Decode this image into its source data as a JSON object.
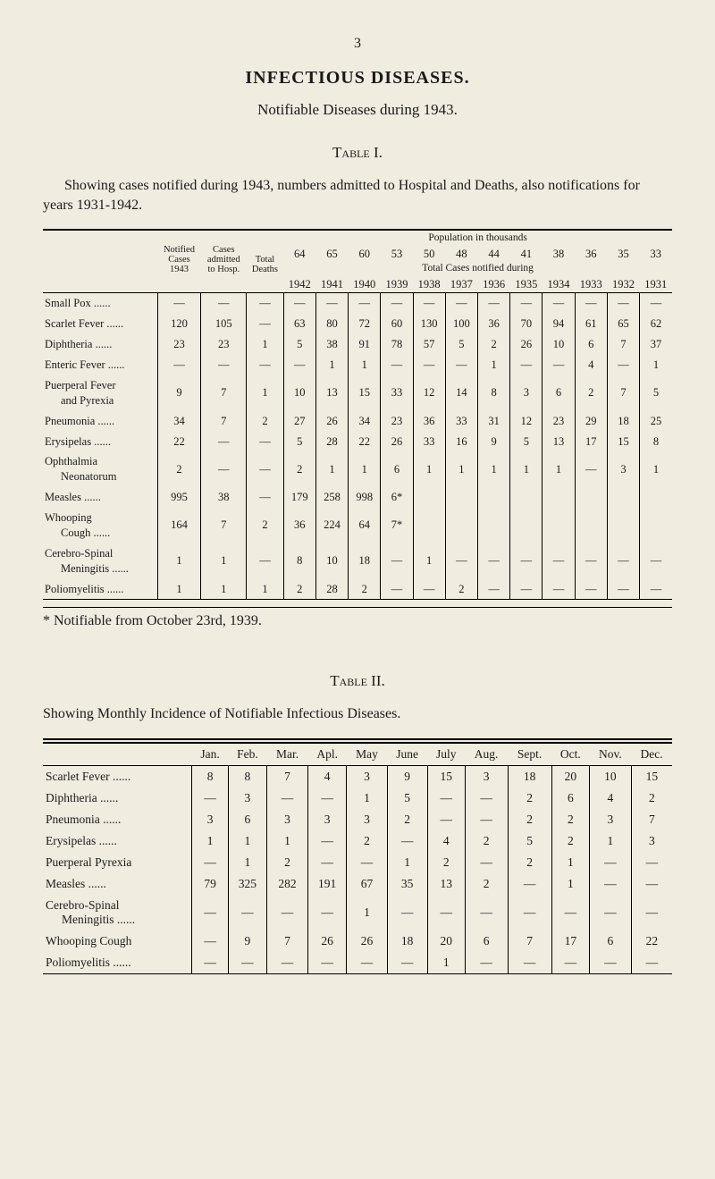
{
  "colors": {
    "background": "#f0ece0",
    "text": "#1a1a1a",
    "rule": "#000000"
  },
  "pageNumber": "3",
  "heading": "INFECTIOUS DISEASES.",
  "subtitle": "Notifiable Diseases during 1943.",
  "tableI": {
    "caption": "Table I.",
    "description": "Showing cases notified during 1943, numbers admitted to Hospital and Deaths, also notifications for years 1931-1942.",
    "header": {
      "col1_line1": "Notified",
      "col1_line2": "Cases",
      "col1_line3": "1943",
      "col2_line1": "Cases",
      "col2_line2": "admitted",
      "col2_line3": "to Hosp.",
      "col3_line1": "Total",
      "col3_line2": "Deaths",
      "pop_label": "Population in thousands",
      "pop_nums": [
        "64",
        "65",
        "60",
        "53",
        "50",
        "48",
        "44",
        "41",
        "38",
        "36",
        "35",
        "33"
      ],
      "tot_label": "Total Cases notified during",
      "years": [
        "1942",
        "1941",
        "1940",
        "1939",
        "1938",
        "1937",
        "1936",
        "1935",
        "1934",
        "1933",
        "1932",
        "1931"
      ]
    },
    "rows": [
      {
        "label": "Small Pox",
        "dots": true,
        "cells": [
          "—",
          "—",
          "—",
          "—",
          "—",
          "—",
          "—",
          "—",
          "—",
          "—",
          "—",
          "—",
          "—",
          "—",
          "—"
        ]
      },
      {
        "label": "Scarlet Fever",
        "dots": true,
        "cells": [
          "120",
          "105",
          "—",
          "63",
          "80",
          "72",
          "60",
          "130",
          "100",
          "36",
          "70",
          "94",
          "61",
          "65",
          "62"
        ]
      },
      {
        "label": "Diphtheria",
        "dots": true,
        "cells": [
          "23",
          "23",
          "1",
          "5",
          "38",
          "91",
          "78",
          "57",
          "5",
          "2",
          "26",
          "10",
          "6",
          "7",
          "37"
        ]
      },
      {
        "label": "Enteric Fever",
        "dots": true,
        "cells": [
          "—",
          "—",
          "—",
          "—",
          "1",
          "1",
          "—",
          "—",
          "—",
          "1",
          "—",
          "—",
          "4",
          "—",
          "1"
        ]
      },
      {
        "label": "Puerperal Fever\nand Pyrexia",
        "cells": [
          "9",
          "7",
          "1",
          "10",
          "13",
          "15",
          "33",
          "12",
          "14",
          "8",
          "3",
          "6",
          "2",
          "7",
          "5"
        ]
      },
      {
        "label": "Pneumonia",
        "dots": true,
        "cells": [
          "34",
          "7",
          "2",
          "27",
          "26",
          "34",
          "23",
          "36",
          "33",
          "31",
          "12",
          "23",
          "29",
          "18",
          "25"
        ]
      },
      {
        "label": "Erysipelas",
        "dots": true,
        "cells": [
          "22",
          "—",
          "—",
          "5",
          "28",
          "22",
          "26",
          "33",
          "16",
          "9",
          "5",
          "13",
          "17",
          "15",
          "8"
        ]
      },
      {
        "label": "Ophthalmia\nNeonatorum",
        "cells": [
          "2",
          "—",
          "—",
          "2",
          "1",
          "1",
          "6",
          "1",
          "1",
          "1",
          "1",
          "1",
          "—",
          "3",
          "1"
        ]
      },
      {
        "label": "Measles",
        "dots": true,
        "cells": [
          "995",
          "38",
          "—",
          "179",
          "258",
          "998",
          "6*",
          "",
          "",
          "",
          "",
          "",
          "",
          "",
          ""
        ]
      },
      {
        "label": "Whooping\nCough",
        "dots": true,
        "cells": [
          "164",
          "7",
          "2",
          "36",
          "224",
          "64",
          "7*",
          "",
          "",
          "",
          "",
          "",
          "",
          "",
          ""
        ]
      },
      {
        "label": "Cerebro-Spinal\nMeningitis",
        "dots": true,
        "cells": [
          "1",
          "1",
          "—",
          "8",
          "10",
          "18",
          "—",
          "1",
          "—",
          "—",
          "—",
          "—",
          "—",
          "—",
          "—"
        ]
      },
      {
        "label": "Poliomyelitis",
        "dots": true,
        "cells": [
          "1",
          "1",
          "1",
          "2",
          "28",
          "2",
          "—",
          "—",
          "2",
          "—",
          "—",
          "—",
          "—",
          "—",
          "—"
        ]
      }
    ],
    "footnote": "* Notifiable from October 23rd, 1939."
  },
  "tableII": {
    "caption": "Table II.",
    "description": "Showing Monthly Incidence of Notifiable Infectious Diseases.",
    "months": [
      "Jan.",
      "Feb.",
      "Mar.",
      "Apl.",
      "May",
      "June",
      "July",
      "Aug.",
      "Sept.",
      "Oct.",
      "Nov.",
      "Dec."
    ],
    "rows": [
      {
        "label": "Scarlet Fever",
        "dots": true,
        "cells": [
          "8",
          "8",
          "7",
          "4",
          "3",
          "9",
          "15",
          "3",
          "18",
          "20",
          "10",
          "15"
        ]
      },
      {
        "label": "Diphtheria",
        "dots": true,
        "cells": [
          "—",
          "3",
          "—",
          "—",
          "1",
          "5",
          "—",
          "—",
          "2",
          "6",
          "4",
          "2"
        ]
      },
      {
        "label": "Pneumonia",
        "dots": true,
        "cells": [
          "3",
          "6",
          "3",
          "3",
          "3",
          "2",
          "—",
          "—",
          "2",
          "2",
          "3",
          "7"
        ]
      },
      {
        "label": "Erysipelas",
        "dots": true,
        "cells": [
          "1",
          "1",
          "1",
          "—",
          "2",
          "—",
          "4",
          "2",
          "5",
          "2",
          "1",
          "3"
        ]
      },
      {
        "label": "Puerperal Pyrexia",
        "cells": [
          "—",
          "1",
          "2",
          "—",
          "—",
          "1",
          "2",
          "—",
          "2",
          "1",
          "—",
          "—"
        ]
      },
      {
        "label": "Measles",
        "dots": true,
        "cells": [
          "79",
          "325",
          "282",
          "191",
          "67",
          "35",
          "13",
          "2",
          "—",
          "1",
          "—",
          "—"
        ]
      },
      {
        "label": "Cerebro-Spinal\nMeningitis",
        "dots": true,
        "cells": [
          "—",
          "—",
          "—",
          "—",
          "1",
          "—",
          "—",
          "—",
          "—",
          "—",
          "—",
          "—"
        ]
      },
      {
        "label": "Whooping Cough",
        "cells": [
          "—",
          "9",
          "7",
          "26",
          "26",
          "18",
          "20",
          "6",
          "7",
          "17",
          "6",
          "22"
        ]
      },
      {
        "label": "Poliomyelitis",
        "dots": true,
        "cells": [
          "—",
          "—",
          "—",
          "—",
          "—",
          "—",
          "1",
          "—",
          "—",
          "—",
          "—",
          "—"
        ]
      }
    ]
  }
}
